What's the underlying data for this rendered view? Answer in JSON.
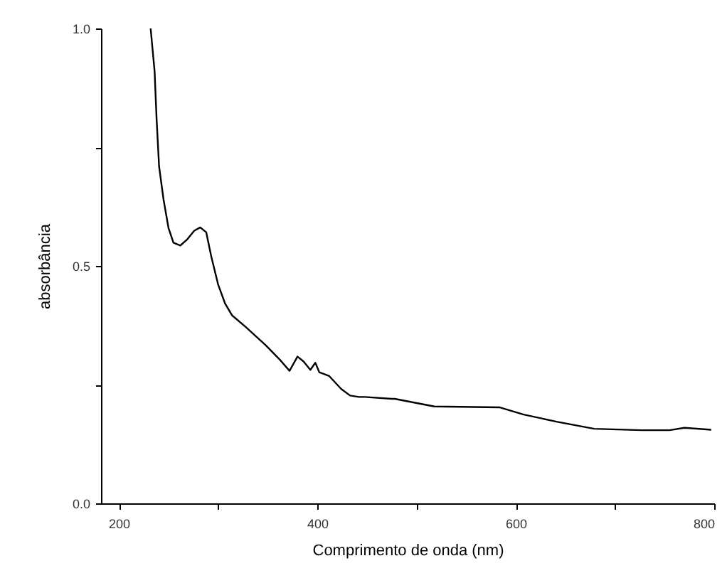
{
  "chart_data": {
    "type": "line",
    "xlabel": "Comprimento de onda (nm)",
    "ylabel": "absorbância",
    "xlim": [
      182,
      800
    ],
    "ylim": [
      0,
      1
    ],
    "xticks": [
      200,
      {
        "value": 300,
        "label": null
      },
      400,
      {
        "value": 500,
        "label": null
      },
      600,
      {
        "value": 700,
        "label": null
      },
      800
    ],
    "yticks": [
      {
        "value": 0,
        "label": "0.0"
      },
      {
        "value": 0.25,
        "label": null
      },
      {
        "value": 0.5,
        "label": "0.5"
      },
      {
        "value": 0.75,
        "label": null
      },
      {
        "value": 1,
        "label": "1.0"
      }
    ],
    "grid": false,
    "marker": "none",
    "line_style": "solid",
    "series": [
      {
        "color": "#000000",
        "x": [
          232,
          236,
          238,
          240.5,
          245,
          250,
          255,
          262,
          269,
          276,
          282,
          288,
          293,
          300,
          307,
          314,
          328,
          348,
          362,
          372,
          380,
          386,
          393,
          398,
          402,
          412,
          424,
          433,
          442,
          448,
          475,
          478,
          518,
          584,
          608,
          641,
          679,
          727,
          755,
          770,
          797
        ],
        "values": [
          1.0,
          0.91,
          0.81,
          0.71,
          0.64,
          0.58,
          0.549,
          0.543,
          0.556,
          0.574,
          0.581,
          0.571,
          0.521,
          0.461,
          0.421,
          0.396,
          0.371,
          0.333,
          0.303,
          0.279,
          0.309,
          0.299,
          0.281,
          0.296,
          0.276,
          0.268,
          0.241,
          0.227,
          0.224,
          0.224,
          0.22,
          0.22,
          0.204,
          0.202,
          0.187,
          0.172,
          0.157,
          0.154,
          0.154,
          0.159,
          0.155
        ]
      }
    ]
  }
}
